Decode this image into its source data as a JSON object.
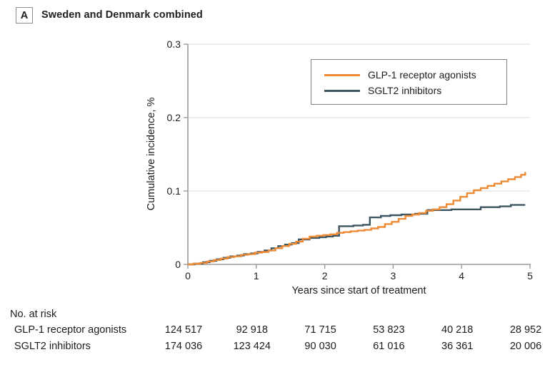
{
  "panel": {
    "label": "A",
    "title": "Sweden and Denmark combined"
  },
  "chart_data": {
    "type": "line",
    "subtype": "step-after",
    "title": "Sweden and Denmark combined",
    "xlabel": "Years since start of treatment",
    "ylabel": "Cumulative incidence, %",
    "xlim": [
      0,
      5
    ],
    "ylim": [
      0,
      0.3
    ],
    "xticks": [
      0,
      1,
      2,
      3,
      4,
      5
    ],
    "xtick_labels": [
      "0",
      "1",
      "2",
      "3",
      "4",
      "5"
    ],
    "yticks": [
      0,
      0.1,
      0.2,
      0.3
    ],
    "ytick_labels": [
      "0",
      "0.1",
      "0.2",
      "0.3"
    ],
    "grid": "horizontal-at-yticks-above-zero",
    "legend_position": "top-right",
    "axis_color": "#9a9a9a",
    "grid_color": "#dcdcdc",
    "series": [
      {
        "name": "GLP-1 receptor agonists",
        "color": "#EE8A33",
        "points": [
          [
            0,
            0
          ],
          [
            0.08,
            0.001
          ],
          [
            0.18,
            0.002
          ],
          [
            0.28,
            0.004
          ],
          [
            0.38,
            0.006
          ],
          [
            0.48,
            0.008
          ],
          [
            0.58,
            0.01
          ],
          [
            0.68,
            0.011
          ],
          [
            0.78,
            0.013
          ],
          [
            0.88,
            0.014
          ],
          [
            0.98,
            0.016
          ],
          [
            1.08,
            0.017
          ],
          [
            1.18,
            0.019
          ],
          [
            1.28,
            0.022
          ],
          [
            1.38,
            0.025
          ],
          [
            1.48,
            0.028
          ],
          [
            1.58,
            0.031
          ],
          [
            1.68,
            0.035
          ],
          [
            1.78,
            0.038
          ],
          [
            1.88,
            0.039
          ],
          [
            1.98,
            0.04
          ],
          [
            2.08,
            0.041
          ],
          [
            2.18,
            0.043
          ],
          [
            2.28,
            0.044
          ],
          [
            2.38,
            0.045
          ],
          [
            2.48,
            0.046
          ],
          [
            2.58,
            0.047
          ],
          [
            2.68,
            0.049
          ],
          [
            2.78,
            0.051
          ],
          [
            2.88,
            0.055
          ],
          [
            2.98,
            0.058
          ],
          [
            3.08,
            0.062
          ],
          [
            3.18,
            0.066
          ],
          [
            3.28,
            0.068
          ],
          [
            3.38,
            0.07
          ],
          [
            3.48,
            0.073
          ],
          [
            3.58,
            0.075
          ],
          [
            3.68,
            0.078
          ],
          [
            3.78,
            0.082
          ],
          [
            3.88,
            0.087
          ],
          [
            3.98,
            0.092
          ],
          [
            4.08,
            0.097
          ],
          [
            4.18,
            0.101
          ],
          [
            4.28,
            0.104
          ],
          [
            4.38,
            0.107
          ],
          [
            4.48,
            0.11
          ],
          [
            4.58,
            0.113
          ],
          [
            4.68,
            0.116
          ],
          [
            4.78,
            0.119
          ],
          [
            4.87,
            0.122
          ],
          [
            4.93,
            0.126
          ]
        ]
      },
      {
        "name": "SGLT2 inhibitors",
        "color": "#3D5560",
        "points": [
          [
            0,
            0
          ],
          [
            0.1,
            0.001
          ],
          [
            0.22,
            0.003
          ],
          [
            0.32,
            0.005
          ],
          [
            0.42,
            0.007
          ],
          [
            0.52,
            0.009
          ],
          [
            0.62,
            0.011
          ],
          [
            0.72,
            0.012
          ],
          [
            0.82,
            0.014
          ],
          [
            0.92,
            0.015
          ],
          [
            1.02,
            0.017
          ],
          [
            1.12,
            0.019
          ],
          [
            1.22,
            0.022
          ],
          [
            1.32,
            0.025
          ],
          [
            1.42,
            0.027
          ],
          [
            1.52,
            0.029
          ],
          [
            1.62,
            0.034
          ],
          [
            1.78,
            0.036
          ],
          [
            1.92,
            0.037
          ],
          [
            2.02,
            0.038
          ],
          [
            2.12,
            0.039
          ],
          [
            2.21,
            0.052
          ],
          [
            2.42,
            0.053
          ],
          [
            2.56,
            0.054
          ],
          [
            2.66,
            0.064
          ],
          [
            2.82,
            0.066
          ],
          [
            2.96,
            0.067
          ],
          [
            3.12,
            0.068
          ],
          [
            3.32,
            0.069
          ],
          [
            3.5,
            0.074
          ],
          [
            3.85,
            0.075
          ],
          [
            4.28,
            0.078
          ],
          [
            4.56,
            0.079
          ],
          [
            4.72,
            0.081
          ],
          [
            4.93,
            0.081
          ]
        ]
      }
    ]
  },
  "risk_table": {
    "header": "No. at risk",
    "rows": [
      {
        "label": "GLP-1 receptor agonists",
        "values": [
          "124 517",
          "92 918",
          "71 715",
          "53 823",
          "40 218",
          "28 952"
        ]
      },
      {
        "label": "SGLT2 inhibitors",
        "values": [
          "174 036",
          "123 424",
          "90 030",
          "61 016",
          "36 361",
          "20 006"
        ]
      }
    ]
  }
}
